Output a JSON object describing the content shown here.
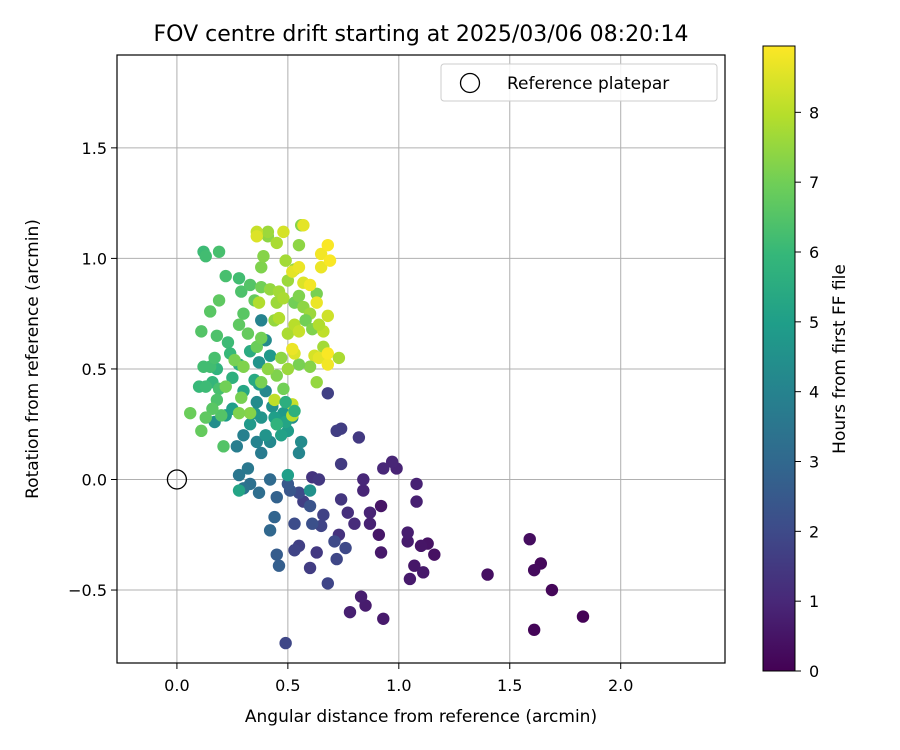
{
  "chart_data": {
    "type": "scatter",
    "title": "FOV centre drift starting at 2025/03/06 08:20:14",
    "xlabel": "Angular distance from reference (arcmin)",
    "ylabel": "Rotation from reference (arcmin)",
    "xlim": [
      -0.27,
      2.47
    ],
    "ylim": [
      -0.83,
      1.92
    ],
    "xticks": [
      0.0,
      0.5,
      1.0,
      1.5,
      2.0
    ],
    "xtick_labels": [
      "0.0",
      "0.5",
      "1.0",
      "1.5",
      "2.0"
    ],
    "yticks": [
      -0.5,
      0.0,
      0.5,
      1.0,
      1.5
    ],
    "ytick_labels": [
      "−0.5",
      "0.0",
      "0.5",
      "1.0",
      "1.5"
    ],
    "grid": true,
    "legend": {
      "position": "top-right",
      "entries": [
        "Reference platepar"
      ]
    },
    "colorbar": {
      "label": "Hours from first FF file",
      "range": [
        0,
        8.95
      ],
      "ticks": [
        0,
        1,
        2,
        3,
        4,
        5,
        6,
        7,
        8
      ],
      "tick_labels": [
        "0",
        "1",
        "2",
        "3",
        "4",
        "5",
        "6",
        "7",
        "8"
      ],
      "colormap": "viridis"
    },
    "reference_point": {
      "x": 0.0,
      "y": 0.0
    },
    "points": [
      {
        "x": 1.83,
        "y": -0.62,
        "t": 0.05
      },
      {
        "x": 1.61,
        "y": -0.68,
        "t": 0.1
      },
      {
        "x": 1.69,
        "y": -0.5,
        "t": 0.15
      },
      {
        "x": 1.64,
        "y": -0.38,
        "t": 0.2
      },
      {
        "x": 1.61,
        "y": -0.41,
        "t": 0.25
      },
      {
        "x": 1.59,
        "y": -0.27,
        "t": 0.3
      },
      {
        "x": 1.4,
        "y": -0.43,
        "t": 0.35
      },
      {
        "x": 1.16,
        "y": -0.34,
        "t": 0.4
      },
      {
        "x": 1.13,
        "y": -0.29,
        "t": 0.45
      },
      {
        "x": 1.1,
        "y": -0.3,
        "t": 0.5
      },
      {
        "x": 1.07,
        "y": -0.39,
        "t": 0.55
      },
      {
        "x": 1.11,
        "y": -0.42,
        "t": 0.6
      },
      {
        "x": 1.05,
        "y": -0.45,
        "t": 0.65
      },
      {
        "x": 1.04,
        "y": -0.28,
        "t": 0.7
      },
      {
        "x": 1.04,
        "y": -0.24,
        "t": 0.75
      },
      {
        "x": 1.08,
        "y": -0.1,
        "t": 0.8
      },
      {
        "x": 1.08,
        "y": -0.02,
        "t": 0.85
      },
      {
        "x": 0.99,
        "y": 0.05,
        "t": 0.9
      },
      {
        "x": 0.97,
        "y": 0.08,
        "t": 0.95
      },
      {
        "x": 0.93,
        "y": 0.05,
        "t": 1.0
      },
      {
        "x": 0.92,
        "y": -0.12,
        "t": 0.5
      },
      {
        "x": 0.91,
        "y": -0.25,
        "t": 0.55
      },
      {
        "x": 0.92,
        "y": -0.33,
        "t": 0.6
      },
      {
        "x": 0.93,
        "y": -0.63,
        "t": 0.65
      },
      {
        "x": 0.85,
        "y": -0.57,
        "t": 0.7
      },
      {
        "x": 0.83,
        "y": -0.53,
        "t": 0.75
      },
      {
        "x": 0.78,
        "y": -0.6,
        "t": 0.8
      },
      {
        "x": 0.87,
        "y": -0.2,
        "t": 0.85
      },
      {
        "x": 0.87,
        "y": -0.15,
        "t": 0.9
      },
      {
        "x": 0.84,
        "y": -0.05,
        "t": 0.95
      },
      {
        "x": 0.84,
        "y": 0.0,
        "t": 1.0
      },
      {
        "x": 0.8,
        "y": -0.2,
        "t": 1.1
      },
      {
        "x": 0.77,
        "y": -0.15,
        "t": 1.2
      },
      {
        "x": 0.73,
        "y": -0.25,
        "t": 1.3
      },
      {
        "x": 0.74,
        "y": -0.09,
        "t": 1.4
      },
      {
        "x": 0.82,
        "y": 0.19,
        "t": 1.5
      },
      {
        "x": 0.74,
        "y": 0.07,
        "t": 1.55
      },
      {
        "x": 0.74,
        "y": 0.23,
        "t": 1.6
      },
      {
        "x": 0.72,
        "y": 0.22,
        "t": 1.65
      },
      {
        "x": 0.68,
        "y": 0.39,
        "t": 1.7
      },
      {
        "x": 0.66,
        "y": -0.16,
        "t": 1.75
      },
      {
        "x": 0.65,
        "y": -0.21,
        "t": 1.8
      },
      {
        "x": 0.68,
        "y": -0.47,
        "t": 1.85
      },
      {
        "x": 0.72,
        "y": -0.36,
        "t": 1.9
      },
      {
        "x": 0.76,
        "y": -0.31,
        "t": 1.95
      },
      {
        "x": 0.71,
        "y": -0.28,
        "t": 2.0
      },
      {
        "x": 0.63,
        "y": -0.33,
        "t": 1.5
      },
      {
        "x": 0.6,
        "y": -0.4,
        "t": 1.6
      },
      {
        "x": 0.55,
        "y": -0.3,
        "t": 1.7
      },
      {
        "x": 0.53,
        "y": -0.32,
        "t": 1.8
      },
      {
        "x": 0.49,
        "y": -0.74,
        "t": 1.9
      },
      {
        "x": 0.61,
        "y": 0.01,
        "t": 1.35
      },
      {
        "x": 0.64,
        "y": 0.0,
        "t": 1.45
      },
      {
        "x": 0.57,
        "y": -0.1,
        "t": 1.65
      },
      {
        "x": 0.55,
        "y": -0.06,
        "t": 2.0
      },
      {
        "x": 0.53,
        "y": -0.2,
        "t": 2.1
      },
      {
        "x": 0.61,
        "y": -0.2,
        "t": 2.2
      },
      {
        "x": 0.6,
        "y": -0.12,
        "t": 2.3
      },
      {
        "x": 0.51,
        "y": -0.05,
        "t": 2.4
      },
      {
        "x": 0.5,
        "y": -0.02,
        "t": 2.5
      },
      {
        "x": 0.45,
        "y": -0.34,
        "t": 2.6
      },
      {
        "x": 0.46,
        "y": -0.39,
        "t": 2.7
      },
      {
        "x": 0.45,
        "y": -0.08,
        "t": 2.8
      },
      {
        "x": 0.44,
        "y": -0.17,
        "t": 2.9
      },
      {
        "x": 0.42,
        "y": -0.23,
        "t": 3.0
      },
      {
        "x": 0.42,
        "y": 0.0,
        "t": 3.1
      },
      {
        "x": 0.37,
        "y": -0.06,
        "t": 3.2
      },
      {
        "x": 0.33,
        "y": -0.02,
        "t": 3.3
      },
      {
        "x": 0.3,
        "y": -0.04,
        "t": 3.4
      },
      {
        "x": 0.28,
        "y": 0.02,
        "t": 3.5
      },
      {
        "x": 0.32,
        "y": 0.05,
        "t": 3.6
      },
      {
        "x": 0.38,
        "y": 0.12,
        "t": 3.7
      },
      {
        "x": 0.27,
        "y": 0.15,
        "t": 3.8
      },
      {
        "x": 0.3,
        "y": 0.2,
        "t": 3.9
      },
      {
        "x": 0.36,
        "y": 0.17,
        "t": 4.0
      },
      {
        "x": 0.42,
        "y": 0.17,
        "t": 4.2
      },
      {
        "x": 0.55,
        "y": 0.12,
        "t": 4.1
      },
      {
        "x": 0.56,
        "y": 0.17,
        "t": 4.3
      },
      {
        "x": 0.6,
        "y": -0.05,
        "t": 4.5
      },
      {
        "x": 0.5,
        "y": 0.02,
        "t": 5.0
      },
      {
        "x": 0.28,
        "y": -0.05,
        "t": 5.2
      },
      {
        "x": 0.4,
        "y": 0.2,
        "t": 4.6
      },
      {
        "x": 0.45,
        "y": 0.25,
        "t": 4.7
      },
      {
        "x": 0.48,
        "y": 0.3,
        "t": 4.8
      },
      {
        "x": 0.5,
        "y": 0.22,
        "t": 4.9
      },
      {
        "x": 0.52,
        "y": 0.28,
        "t": 4.4
      },
      {
        "x": 0.43,
        "y": 0.33,
        "t": 4.5
      },
      {
        "x": 0.38,
        "y": 0.28,
        "t": 4.6
      },
      {
        "x": 0.35,
        "y": 0.3,
        "t": 4.7
      },
      {
        "x": 0.33,
        "y": 0.25,
        "t": 4.8
      },
      {
        "x": 0.36,
        "y": 0.35,
        "t": 4.3
      },
      {
        "x": 0.4,
        "y": 0.4,
        "t": 4.2
      },
      {
        "x": 0.37,
        "y": 0.43,
        "t": 4.9
      },
      {
        "x": 0.44,
        "y": 0.28,
        "t": 5.0
      },
      {
        "x": 0.47,
        "y": 0.2,
        "t": 5.1
      },
      {
        "x": 0.49,
        "y": 0.26,
        "t": 5.2
      },
      {
        "x": 0.38,
        "y": 0.72,
        "t": 4.0
      },
      {
        "x": 0.4,
        "y": 0.63,
        "t": 4.3
      },
      {
        "x": 0.37,
        "y": 0.53,
        "t": 4.6
      },
      {
        "x": 0.42,
        "y": 0.56,
        "t": 4.8
      },
      {
        "x": 0.17,
        "y": 0.26,
        "t": 4.4
      },
      {
        "x": 0.22,
        "y": 0.29,
        "t": 4.9
      },
      {
        "x": 0.25,
        "y": 0.32,
        "t": 5.0
      },
      {
        "x": 0.3,
        "y": 0.4,
        "t": 5.3
      },
      {
        "x": 0.35,
        "y": 0.45,
        "t": 5.4
      },
      {
        "x": 0.33,
        "y": 0.58,
        "t": 5.5
      },
      {
        "x": 0.28,
        "y": 0.52,
        "t": 5.6
      },
      {
        "x": 0.25,
        "y": 0.46,
        "t": 5.7
      },
      {
        "x": 0.18,
        "y": 0.5,
        "t": 5.8
      },
      {
        "x": 0.16,
        "y": 0.44,
        "t": 5.9
      },
      {
        "x": 0.1,
        "y": 0.42,
        "t": 6.0
      },
      {
        "x": 0.13,
        "y": 0.42,
        "t": 6.1
      },
      {
        "x": 0.15,
        "y": 0.51,
        "t": 6.2
      },
      {
        "x": 0.19,
        "y": 0.41,
        "t": 6.3
      },
      {
        "x": 0.18,
        "y": 0.36,
        "t": 6.4
      },
      {
        "x": 0.2,
        "y": 0.29,
        "t": 6.5
      },
      {
        "x": 0.16,
        "y": 0.32,
        "t": 6.6
      },
      {
        "x": 0.13,
        "y": 0.28,
        "t": 6.7
      },
      {
        "x": 0.11,
        "y": 0.22,
        "t": 6.8
      },
      {
        "x": 0.06,
        "y": 0.3,
        "t": 6.9
      },
      {
        "x": 0.12,
        "y": 0.51,
        "t": 6.2
      },
      {
        "x": 0.17,
        "y": 0.55,
        "t": 6.3
      },
      {
        "x": 0.18,
        "y": 0.65,
        "t": 6.4
      },
      {
        "x": 0.11,
        "y": 0.67,
        "t": 6.5
      },
      {
        "x": 0.15,
        "y": 0.76,
        "t": 6.6
      },
      {
        "x": 0.19,
        "y": 0.81,
        "t": 6.7
      },
      {
        "x": 0.23,
        "y": 0.62,
        "t": 6.1
      },
      {
        "x": 0.24,
        "y": 0.57,
        "t": 6.0
      },
      {
        "x": 0.22,
        "y": 0.92,
        "t": 6.3
      },
      {
        "x": 0.28,
        "y": 0.91,
        "t": 6.2
      },
      {
        "x": 0.29,
        "y": 0.85,
        "t": 6.4
      },
      {
        "x": 0.33,
        "y": 0.88,
        "t": 6.5
      },
      {
        "x": 0.3,
        "y": 0.75,
        "t": 6.6
      },
      {
        "x": 0.28,
        "y": 0.7,
        "t": 6.7
      },
      {
        "x": 0.32,
        "y": 0.66,
        "t": 6.8
      },
      {
        "x": 0.36,
        "y": 0.6,
        "t": 6.9
      },
      {
        "x": 0.38,
        "y": 0.64,
        "t": 7.0
      },
      {
        "x": 0.26,
        "y": 0.54,
        "t": 7.1
      },
      {
        "x": 0.3,
        "y": 0.51,
        "t": 7.2
      },
      {
        "x": 0.22,
        "y": 0.42,
        "t": 7.0
      },
      {
        "x": 0.29,
        "y": 0.37,
        "t": 7.1
      },
      {
        "x": 0.33,
        "y": 0.3,
        "t": 7.3
      },
      {
        "x": 0.28,
        "y": 0.3,
        "t": 7.2
      },
      {
        "x": 0.21,
        "y": 0.15,
        "t": 6.5
      },
      {
        "x": 0.12,
        "y": 1.03,
        "t": 6.1
      },
      {
        "x": 0.13,
        "y": 1.01,
        "t": 6.2
      },
      {
        "x": 0.19,
        "y": 1.03,
        "t": 6.3
      },
      {
        "x": 0.35,
        "y": 0.81,
        "t": 6.8
      },
      {
        "x": 0.38,
        "y": 0.87,
        "t": 7.0
      },
      {
        "x": 0.38,
        "y": 0.96,
        "t": 7.2
      },
      {
        "x": 0.39,
        "y": 1.01,
        "t": 7.3
      },
      {
        "x": 0.41,
        "y": 1.1,
        "t": 7.4
      },
      {
        "x": 0.41,
        "y": 1.12,
        "t": 7.6
      },
      {
        "x": 0.45,
        "y": 1.07,
        "t": 7.8
      },
      {
        "x": 0.36,
        "y": 1.12,
        "t": 8.2
      },
      {
        "x": 0.36,
        "y": 1.1,
        "t": 8.5
      },
      {
        "x": 0.42,
        "y": 0.86,
        "t": 7.5
      },
      {
        "x": 0.45,
        "y": 0.8,
        "t": 7.6
      },
      {
        "x": 0.46,
        "y": 0.85,
        "t": 7.7
      },
      {
        "x": 0.48,
        "y": 0.82,
        "t": 7.8
      },
      {
        "x": 0.44,
        "y": 0.72,
        "t": 7.5
      },
      {
        "x": 0.46,
        "y": 0.73,
        "t": 7.9
      },
      {
        "x": 0.49,
        "y": 0.99,
        "t": 7.7
      },
      {
        "x": 0.5,
        "y": 0.9,
        "t": 7.6
      },
      {
        "x": 0.53,
        "y": 0.95,
        "t": 7.5
      },
      {
        "x": 0.55,
        "y": 1.06,
        "t": 7.4
      },
      {
        "x": 0.56,
        "y": 1.15,
        "t": 7.3
      },
      {
        "x": 0.57,
        "y": 1.15,
        "t": 8.6
      },
      {
        "x": 0.48,
        "y": 1.12,
        "t": 8.4
      },
      {
        "x": 0.52,
        "y": 0.94,
        "t": 8.6
      },
      {
        "x": 0.55,
        "y": 0.96,
        "t": 8.7
      },
      {
        "x": 0.57,
        "y": 0.89,
        "t": 8.5
      },
      {
        "x": 0.53,
        "y": 0.8,
        "t": 7.0
      },
      {
        "x": 0.55,
        "y": 0.83,
        "t": 7.2
      },
      {
        "x": 0.57,
        "y": 0.78,
        "t": 7.4
      },
      {
        "x": 0.6,
        "y": 0.75,
        "t": 7.6
      },
      {
        "x": 0.5,
        "y": 0.66,
        "t": 7.8
      },
      {
        "x": 0.53,
        "y": 0.7,
        "t": 8.0
      },
      {
        "x": 0.55,
        "y": 0.67,
        "t": 8.2
      },
      {
        "x": 0.58,
        "y": 0.72,
        "t": 7.0
      },
      {
        "x": 0.61,
        "y": 0.68,
        "t": 7.2
      },
      {
        "x": 0.63,
        "y": 0.84,
        "t": 7.1
      },
      {
        "x": 0.65,
        "y": 0.96,
        "t": 8.7
      },
      {
        "x": 0.65,
        "y": 1.02,
        "t": 8.8
      },
      {
        "x": 0.68,
        "y": 1.06,
        "t": 8.9
      },
      {
        "x": 0.69,
        "y": 0.99,
        "t": 8.9
      },
      {
        "x": 0.6,
        "y": 0.88,
        "t": 8.8
      },
      {
        "x": 0.63,
        "y": 0.8,
        "t": 8.7
      },
      {
        "x": 0.68,
        "y": 0.74,
        "t": 8.3
      },
      {
        "x": 0.66,
        "y": 0.67,
        "t": 8.1
      },
      {
        "x": 0.64,
        "y": 0.7,
        "t": 7.9
      },
      {
        "x": 0.66,
        "y": 0.6,
        "t": 7.7
      },
      {
        "x": 0.62,
        "y": 0.56,
        "t": 8.4
      },
      {
        "x": 0.64,
        "y": 0.55,
        "t": 8.6
      },
      {
        "x": 0.68,
        "y": 0.52,
        "t": 8.8
      },
      {
        "x": 0.68,
        "y": 0.57,
        "t": 8.9
      },
      {
        "x": 0.73,
        "y": 0.55,
        "t": 7.8
      },
      {
        "x": 0.63,
        "y": 0.44,
        "t": 7.5
      },
      {
        "x": 0.6,
        "y": 0.51,
        "t": 7.3
      },
      {
        "x": 0.55,
        "y": 0.52,
        "t": 7.1
      },
      {
        "x": 0.53,
        "y": 0.57,
        "t": 8.5
      },
      {
        "x": 0.52,
        "y": 0.59,
        "t": 8.7
      },
      {
        "x": 0.48,
        "y": 0.41,
        "t": 7.0
      },
      {
        "x": 0.52,
        "y": 0.29,
        "t": 8.0
      },
      {
        "x": 0.52,
        "y": 0.34,
        "t": 8.2
      },
      {
        "x": 0.44,
        "y": 0.36,
        "t": 8.1
      },
      {
        "x": 0.5,
        "y": 0.5,
        "t": 7.6
      },
      {
        "x": 0.47,
        "y": 0.55,
        "t": 7.4
      },
      {
        "x": 0.45,
        "y": 0.47,
        "t": 7.2
      },
      {
        "x": 0.41,
        "y": 0.5,
        "t": 7.4
      },
      {
        "x": 0.38,
        "y": 0.44,
        "t": 7.1
      },
      {
        "x": 0.37,
        "y": 0.8,
        "t": 7.9
      },
      {
        "x": 0.53,
        "y": 0.31,
        "t": 5.7
      },
      {
        "x": 0.49,
        "y": 0.35,
        "t": 5.6
      },
      {
        "x": 0.45,
        "y": 0.25,
        "t": 5.8
      }
    ]
  }
}
